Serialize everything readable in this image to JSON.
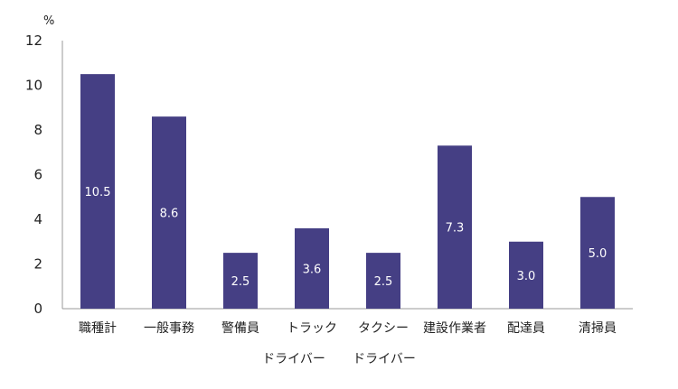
{
  "chart_data": {
    "type": "bar",
    "categories": [
      "職種計",
      "一般事務",
      "警備員",
      "トラック",
      "タクシー",
      "建設作業者",
      "配達員",
      "清掃員"
    ],
    "values": [
      10.5,
      8.6,
      2.5,
      3.6,
      2.5,
      7.3,
      3.0,
      5.0
    ],
    "value_labels": [
      "10.5",
      "8.6",
      "2.5",
      "3.6",
      "2.5",
      "7.3",
      "3.0",
      "5.0"
    ],
    "subcategory_labels": [
      "ドライバー",
      "ドライバー"
    ],
    "y_unit": "%",
    "ylim": [
      0,
      12
    ],
    "yticks": [
      "0",
      "2",
      "4",
      "6",
      "8",
      "10",
      "12"
    ],
    "bar_color": "#453f84",
    "grid": false
  }
}
